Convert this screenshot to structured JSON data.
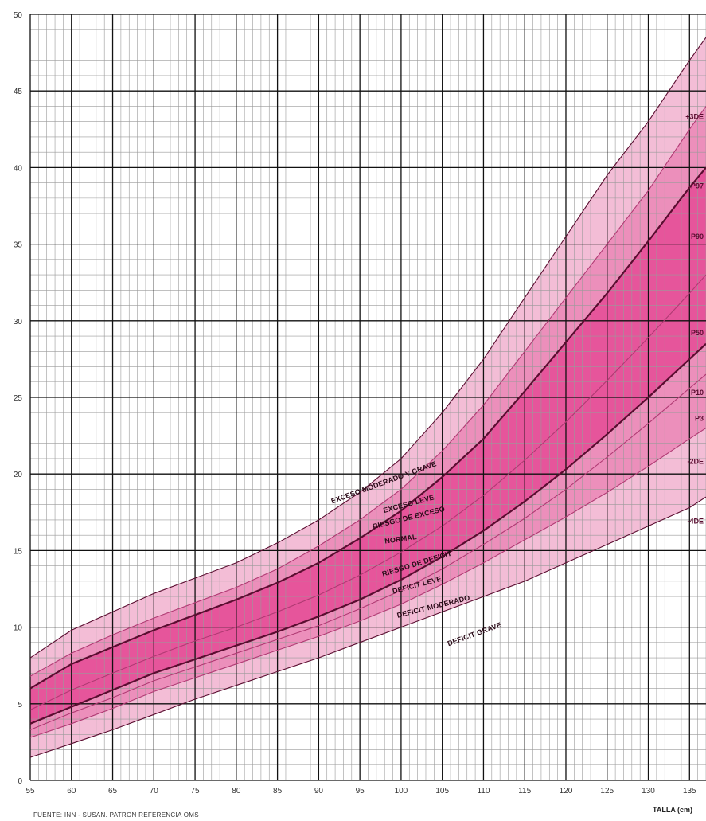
{
  "chart_data": {
    "type": "area",
    "xlabel": "TALLA (cm)",
    "ylabel": "",
    "source_note": "FUENTE: INN - SUSAN. PATRON REFERENCIA OMS",
    "xlim": [
      55,
      137
    ],
    "ylim": [
      0,
      50
    ],
    "x_ticks": [
      55,
      60,
      65,
      70,
      75,
      80,
      85,
      90,
      95,
      100,
      105,
      110,
      115,
      120,
      125,
      130,
      135
    ],
    "y_ticks": [
      0,
      5,
      10,
      15,
      20,
      25,
      30,
      35,
      40,
      45,
      50
    ],
    "grid": true,
    "x": [
      55,
      60,
      65,
      70,
      75,
      80,
      85,
      90,
      95,
      100,
      105,
      110,
      115,
      120,
      125,
      130,
      135,
      137
    ],
    "series": [
      {
        "name": "+3DE",
        "values": [
          8.0,
          9.8,
          11.0,
          12.2,
          13.2,
          14.2,
          15.5,
          17.0,
          18.8,
          21.0,
          24.0,
          27.5,
          31.5,
          35.5,
          39.5,
          43.0,
          47.0,
          48.5
        ]
      },
      {
        "name": "P97",
        "values": [
          6.8,
          8.3,
          9.5,
          10.6,
          11.6,
          12.6,
          13.8,
          15.3,
          17.0,
          19.0,
          21.5,
          24.5,
          28.0,
          31.5,
          35.0,
          38.5,
          42.5,
          44.0
        ]
      },
      {
        "name": "P90",
        "values": [
          6.0,
          7.6,
          8.7,
          9.8,
          10.8,
          11.8,
          12.9,
          14.2,
          15.8,
          17.6,
          19.8,
          22.3,
          25.4,
          28.6,
          31.8,
          35.2,
          38.7,
          40.0
        ]
      },
      {
        "name": "P50",
        "values": [
          4.6,
          5.9,
          7.0,
          8.1,
          9.1,
          10.0,
          11.0,
          12.1,
          13.4,
          14.9,
          16.6,
          18.6,
          20.9,
          23.4,
          26.1,
          28.9,
          31.8,
          33.0
        ]
      },
      {
        "name": "P10",
        "values": [
          3.7,
          4.8,
          5.9,
          7.0,
          7.9,
          8.8,
          9.7,
          10.7,
          11.8,
          13.1,
          14.6,
          16.3,
          18.2,
          20.3,
          22.6,
          25.0,
          27.5,
          28.5
        ]
      },
      {
        "name": "P3",
        "values": [
          3.3,
          4.4,
          5.4,
          6.5,
          7.4,
          8.3,
          9.2,
          10.1,
          11.2,
          12.4,
          13.8,
          15.4,
          17.1,
          19.0,
          21.1,
          23.3,
          25.6,
          26.5
        ]
      },
      {
        "name": "-2DE",
        "values": [
          2.8,
          3.7,
          4.7,
          5.8,
          6.7,
          7.6,
          8.5,
          9.4,
          10.4,
          11.5,
          12.8,
          14.2,
          15.7,
          17.2,
          18.8,
          20.5,
          22.3,
          23.0
        ]
      },
      {
        "name": "-4DE",
        "values": [
          1.5,
          2.4,
          3.3,
          4.3,
          5.3,
          6.2,
          7.1,
          8.0,
          9.0,
          10.0,
          11.0,
          12.0,
          13.0,
          14.2,
          15.4,
          16.6,
          17.8,
          18.5
        ]
      }
    ],
    "band_labels": [
      "EXCESO MODERADO Y GRAVE",
      "EXCESO LEVE",
      "RIESGO DE EXCESO",
      "NORMAL",
      "RIESGO DE DEFICIT",
      "DEFICIT LEVE",
      "DEFICIT MODERADO",
      "DEFICIT GRAVE"
    ],
    "colors": {
      "band_outer": "#f3bdd6",
      "band_mid": "#ec8fbb",
      "band_inner": "#e6559b",
      "curve_dark": "#5a0d30",
      "curve_light": "#b03a73",
      "grid_major": "#111111",
      "grid_minor": "#9a9a9a"
    }
  }
}
